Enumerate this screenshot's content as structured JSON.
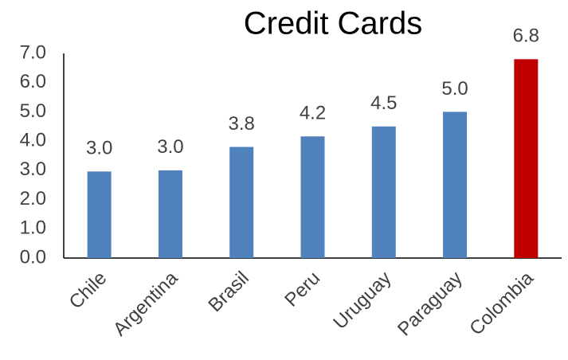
{
  "chart_data": {
    "type": "bar",
    "title": "Credit Cards",
    "categories": [
      "Chile",
      "Argentina",
      "Brasil",
      "Peru",
      "Uruguay",
      "Paraguay",
      "Colombia"
    ],
    "values": [
      2.96,
      3.0,
      3.8,
      4.16,
      4.5,
      5.0,
      6.8
    ],
    "value_labels": [
      "3.0",
      "3.0",
      "3.8",
      "4.2",
      "4.5",
      "5.0",
      "6.8"
    ],
    "colors": [
      "#4f81bd",
      "#4f81bd",
      "#4f81bd",
      "#4f81bd",
      "#4f81bd",
      "#4f81bd",
      "#c00000"
    ],
    "ylim": [
      0,
      7
    ],
    "yticks": [
      {
        "value": 0,
        "label": "0.0"
      },
      {
        "value": 1,
        "label": "1.0"
      },
      {
        "value": 2,
        "label": "2.0"
      },
      {
        "value": 3,
        "label": "3.0"
      },
      {
        "value": 4,
        "label": "4.0"
      },
      {
        "value": 5,
        "label": "5.0"
      },
      {
        "value": 6,
        "label": "6.0"
      },
      {
        "value": 7,
        "label": "7.0"
      }
    ],
    "grid": false
  }
}
